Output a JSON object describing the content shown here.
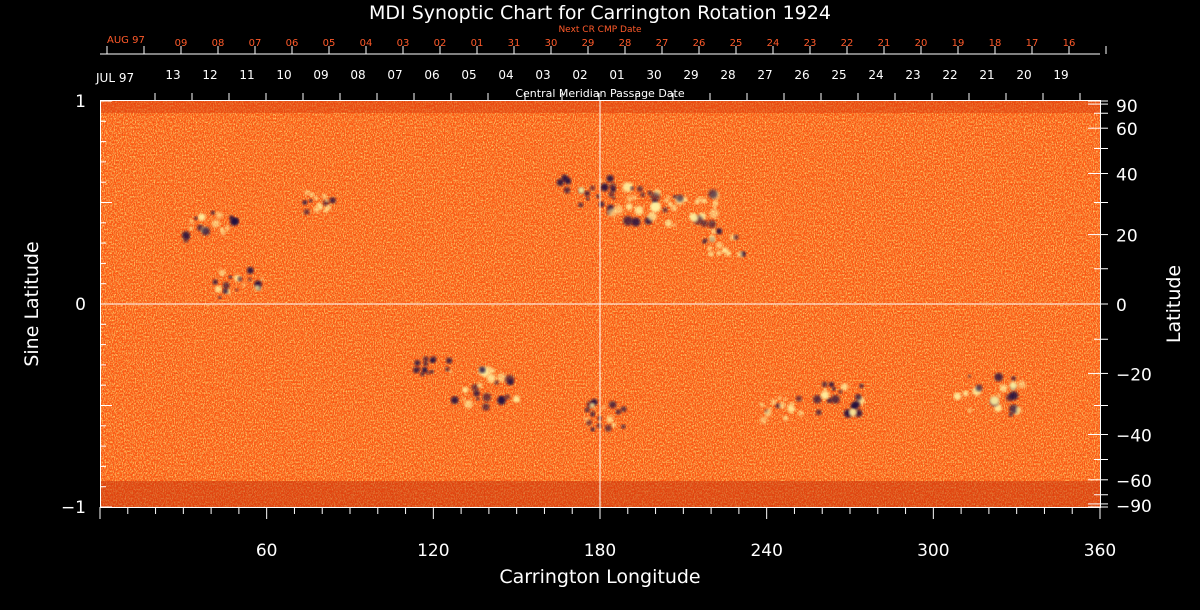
{
  "chart_data": {
    "type": "heatmap",
    "title": "MDI Synoptic Chart for Carrington Rotation 1924",
    "xlabel": "Carrington Longitude",
    "ylabel_left": "Sine Latitude",
    "ylabel_right": "Latitude",
    "xlim": [
      0,
      360
    ],
    "ylim": [
      -1,
      1
    ],
    "x_ticks": [
      "60",
      "120",
      "180",
      "240",
      "300",
      "360"
    ],
    "y_ticks_left": [
      "1",
      "0",
      "−1"
    ],
    "y_ticks_right": [
      "90",
      "60",
      "40",
      "20",
      "0",
      "−20",
      "−40",
      "−60",
      "−90"
    ],
    "colors": {
      "background": "#ff5a12",
      "positive": "#fff2a0",
      "negative": "#1a1040",
      "axes": "#ffffff",
      "accent": "#ff5a2a"
    },
    "top_axis": {
      "label": "Central Meridian Passage Date",
      "start_label": "JUL 97",
      "days": [
        "13",
        "12",
        "11",
        "10",
        "09",
        "08",
        "07",
        "06",
        "05",
        "04",
        "03",
        "02",
        "01",
        "30",
        "29",
        "28",
        "27",
        "26",
        "25",
        "24",
        "23",
        "22",
        "21",
        "20",
        "19"
      ]
    },
    "next_axis": {
      "label": "Next CR CMP Date",
      "start_label": "AUG 97",
      "days": [
        "09",
        "08",
        "07",
        "06",
        "05",
        "04",
        "03",
        "02",
        "01",
        "31",
        "30",
        "29",
        "28",
        "27",
        "26",
        "25",
        "24",
        "23",
        "22",
        "21",
        "20",
        "19",
        "18",
        "17",
        "16"
      ]
    },
    "features": [
      {
        "lon": 40,
        "sinlat": 0.38,
        "polarity": "mixed",
        "strength": 0.8
      },
      {
        "lon": 50,
        "sinlat": 0.1,
        "polarity": "mixed",
        "strength": 0.7
      },
      {
        "lon": 80,
        "sinlat": 0.5,
        "polarity": "mixed",
        "strength": 0.5
      },
      {
        "lon": 175,
        "sinlat": 0.55,
        "polarity": "negative",
        "strength": 0.8
      },
      {
        "lon": 195,
        "sinlat": 0.5,
        "polarity": "mixed",
        "strength": 1.0
      },
      {
        "lon": 210,
        "sinlat": 0.48,
        "polarity": "positive",
        "strength": 1.0
      },
      {
        "lon": 225,
        "sinlat": 0.3,
        "polarity": "mixed",
        "strength": 0.6
      },
      {
        "lon": 140,
        "sinlat": -0.42,
        "polarity": "mixed",
        "strength": 1.0
      },
      {
        "lon": 180,
        "sinlat": -0.55,
        "polarity": "negative",
        "strength": 0.7
      },
      {
        "lon": 245,
        "sinlat": -0.52,
        "polarity": "positive",
        "strength": 0.6
      },
      {
        "lon": 265,
        "sinlat": -0.47,
        "polarity": "negative",
        "strength": 0.8
      },
      {
        "lon": 320,
        "sinlat": -0.45,
        "polarity": "mixed",
        "strength": 1.0
      },
      {
        "lon": 120,
        "sinlat": -0.3,
        "polarity": "negative",
        "strength": 0.5
      }
    ]
  }
}
